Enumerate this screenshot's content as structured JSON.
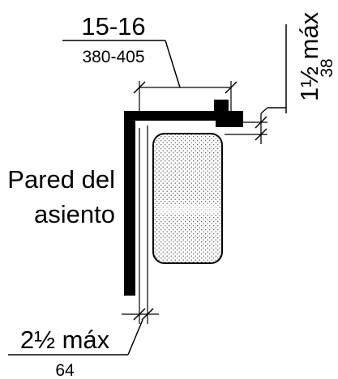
{
  "diagram": {
    "top_dimension": {
      "inches": "15-16",
      "millimeters": "380-405"
    },
    "right_dimension": {
      "inches": "1½ máx",
      "millimeters": "38"
    },
    "bottom_dimension": {
      "inches": "2½ máx",
      "millimeters": "64"
    },
    "wall_label": {
      "line1": "Pared del",
      "line2": "asiento"
    }
  }
}
